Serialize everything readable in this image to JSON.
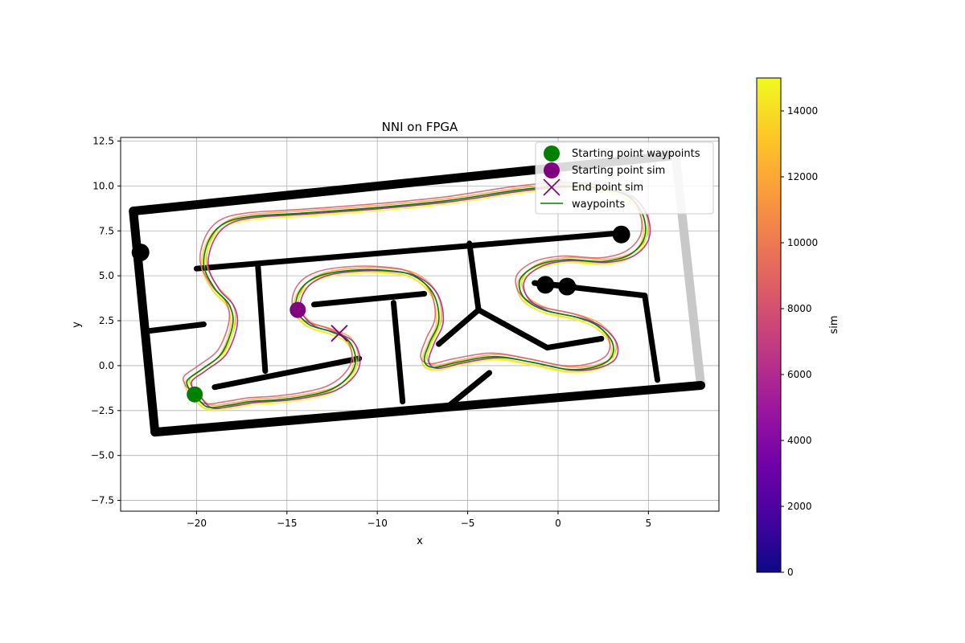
{
  "chart_data": {
    "type": "line",
    "title": "NNI on FPGA",
    "xlabel": "x",
    "ylabel": "y",
    "xlim": [
      -24.2,
      8.9
    ],
    "ylim": [
      -8.1,
      12.7
    ],
    "xticks": [
      -20,
      -15,
      -10,
      -5,
      0,
      5
    ],
    "yticks": [
      -7.5,
      -5.0,
      -2.5,
      0.0,
      2.5,
      5.0,
      7.5,
      10.0,
      12.5
    ],
    "grid": true,
    "legend_position": "top-right",
    "legend": [
      {
        "label": "Starting point waypoints",
        "marker": "circle",
        "color": "#008000"
      },
      {
        "label": "Starting point sim",
        "marker": "circle",
        "color": "#800080"
      },
      {
        "label": "End point sim",
        "marker": "x",
        "color": "#800080"
      },
      {
        "label": "waypoints",
        "marker": "line",
        "color": "#008000"
      }
    ],
    "colorbar": {
      "label": "sim",
      "min": 0,
      "max": 15000,
      "ticks": [
        0,
        2000,
        4000,
        6000,
        8000,
        10000,
        12000,
        14000
      ],
      "colormap": [
        "#0d0887",
        "#46039f",
        "#7201a8",
        "#9c179e",
        "#bd3786",
        "#d8576b",
        "#ed7953",
        "#fb9f3a",
        "#fdca26",
        "#f0f921"
      ]
    },
    "start_waypoints": {
      "x": -20.1,
      "y": -1.6
    },
    "start_sim": {
      "x": -14.4,
      "y": 3.1
    },
    "end_sim": {
      "x": -12.1,
      "y": 1.8
    },
    "waypoints": {
      "x": [
        -20.1,
        -19.4,
        -18.2,
        -17.0,
        -15.5,
        -14.0,
        -12.5,
        -11.5,
        -11.2,
        -11.6,
        -12.6,
        -13.8,
        -14.5,
        -14.2,
        -13.2,
        -11.5,
        -9.5,
        -8.0,
        -6.9,
        -6.6,
        -7.1,
        -7.4,
        -6.9,
        -5.5,
        -3.5,
        -1.5,
        0.5,
        1.9,
        2.9,
        3.0,
        2.2,
        1.0,
        -0.8,
        -1.9,
        -2.1,
        -1.1,
        0.5,
        2.5,
        4.0,
        4.8,
        4.6,
        3.5,
        1.0,
        -2.0,
        -6.0,
        -10.0,
        -14.0,
        -17.0,
        -18.5,
        -19.3,
        -19.6,
        -19.0,
        -18.2,
        -18.0,
        -18.6,
        -19.7,
        -20.5,
        -20.4,
        -20.1
      ],
      "y": [
        -1.6,
        -2.3,
        -2.2,
        -2.0,
        -1.9,
        -1.7,
        -1.3,
        -0.5,
        0.4,
        1.4,
        1.9,
        2.3,
        3.2,
        4.3,
        5.0,
        5.3,
        5.3,
        5.0,
        4.0,
        2.5,
        1.3,
        0.3,
        -0.1,
        0.2,
        0.5,
        0.2,
        -0.2,
        -0.1,
        0.4,
        1.3,
        2.2,
        2.7,
        3.1,
        3.8,
        4.8,
        5.6,
        5.9,
        5.8,
        6.2,
        7.2,
        8.6,
        9.6,
        10.0,
        9.8,
        9.2,
        8.8,
        8.5,
        8.3,
        7.9,
        7.0,
        5.6,
        4.3,
        3.4,
        2.3,
        0.7,
        -0.2,
        -0.8,
        -1.3,
        -1.6
      ]
    },
    "sim_trajectory": {
      "color_variable": "sim",
      "t": [
        0,
        1500,
        3000,
        4000,
        5000,
        6000,
        7000,
        8000,
        9000,
        10000,
        11000,
        12000,
        13000,
        14000,
        15000
      ],
      "note": ""
    },
    "map_walls": [
      {
        "x": [
          -23.5,
          6.5
        ],
        "y": [
          8.6,
          11.7
        ]
      },
      {
        "x": [
          6.5,
          7.9
        ],
        "y": [
          11.7,
          -1.1
        ]
      },
      {
        "x": [
          7.9,
          -22.3
        ],
        "y": [
          -1.1,
          -3.7
        ]
      },
      {
        "x": [
          -22.3,
          -23.5
        ],
        "y": [
          -3.7,
          8.6
        ]
      },
      {
        "x": [
          -20.0,
          3.7
        ],
        "y": [
          5.4,
          7.4
        ]
      },
      {
        "x": [
          -16.6,
          -16.2
        ],
        "y": [
          5.5,
          -0.3
        ]
      },
      {
        "x": [
          -22.9,
          -19.6
        ],
        "y": [
          1.9,
          2.3
        ]
      },
      {
        "x": [
          -19.0,
          -11.0
        ],
        "y": [
          -1.2,
          0.4
        ]
      },
      {
        "x": [
          -13.5,
          -7.4
        ],
        "y": [
          3.4,
          4.0
        ]
      },
      {
        "x": [
          -9.1,
          -8.6
        ],
        "y": [
          3.5,
          -2.0
        ]
      },
      {
        "x": [
          -4.9,
          -4.4
        ],
        "y": [
          6.8,
          3.1
        ]
      },
      {
        "x": [
          -4.4,
          -6.6
        ],
        "y": [
          3.1,
          1.2
        ]
      },
      {
        "x": [
          -4.4,
          -0.6
        ],
        "y": [
          3.1,
          1.0
        ]
      },
      {
        "x": [
          -0.6,
          2.4
        ],
        "y": [
          1.0,
          1.5
        ]
      },
      {
        "x": [
          -1.3,
          4.8
        ],
        "y": [
          4.6,
          3.9
        ]
      },
      {
        "x": [
          4.8,
          5.5
        ],
        "y": [
          3.9,
          -0.8
        ]
      },
      {
        "x": [
          -3.8,
          -6.0
        ],
        "y": [
          -0.4,
          -2.2
        ]
      },
      {
        "x": [
          -1.3,
          0.9
        ],
        "y": [
          4.6,
          4.4
        ]
      }
    ],
    "map_blobs": [
      {
        "x": -23.1,
        "y": 6.3
      },
      {
        "x": 3.5,
        "y": 7.3
      },
      {
        "x": -0.7,
        "y": 4.5
      },
      {
        "x": 0.5,
        "y": 4.4
      }
    ]
  }
}
